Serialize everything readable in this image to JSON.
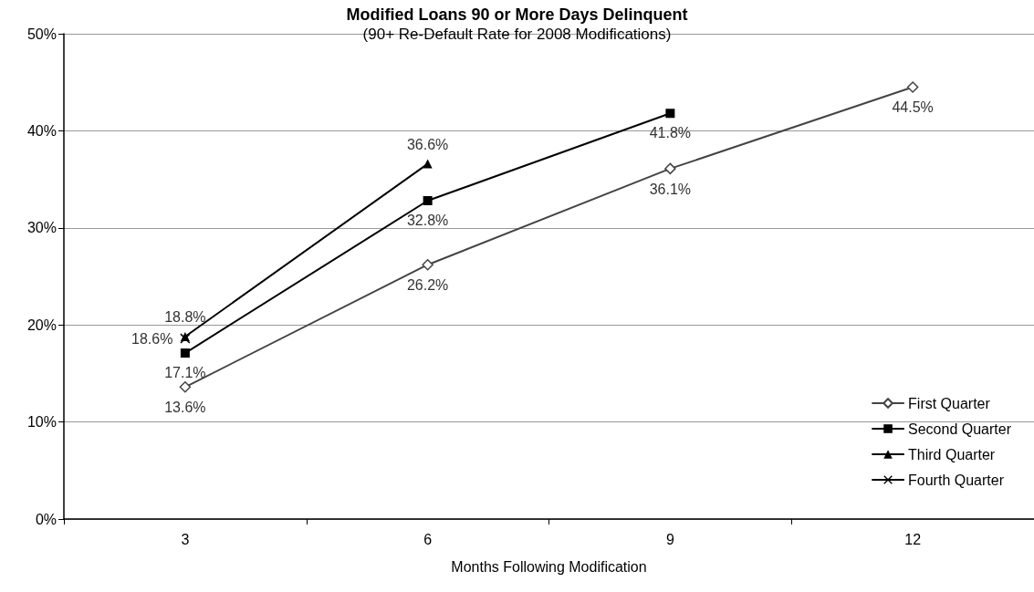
{
  "chart_data": {
    "type": "line",
    "title": "Modified Loans 90 or More Days Delinquent",
    "subtitle": "(90+ Re-Default Rate for 2008 Modifications)",
    "xlabel": "Months Following Modification",
    "categories": [
      "3",
      "6",
      "9",
      "12"
    ],
    "series": [
      {
        "name": "First Quarter",
        "color": "#444444",
        "marker": "diamond",
        "values": [
          13.6,
          26.2,
          36.1,
          44.5
        ],
        "value_labels": [
          "13.6%",
          "26.2%",
          "36.1%",
          "44.5%"
        ]
      },
      {
        "name": "Second Quarter",
        "color": "#000000",
        "marker": "square",
        "values": [
          17.1,
          32.8,
          41.8,
          null
        ],
        "value_labels": [
          "17.1%",
          "32.8%",
          "41.8%",
          null
        ]
      },
      {
        "name": "Third Quarter",
        "color": "#000000",
        "marker": "triangle",
        "values": [
          18.8,
          36.6,
          null,
          null
        ],
        "value_labels": [
          "18.8%",
          "36.6%",
          null,
          null
        ]
      },
      {
        "name": "Fourth Quarter",
        "color": "#000000",
        "marker": "cross",
        "values": [
          18.6,
          null,
          null,
          null
        ],
        "value_labels": [
          "18.6%",
          null,
          null,
          null
        ]
      }
    ],
    "ylim": [
      0,
      50
    ],
    "yticks": [
      {
        "value": 0,
        "label": "0%"
      },
      {
        "value": 10,
        "label": "10%"
      },
      {
        "value": 20,
        "label": "20%"
      },
      {
        "value": 30,
        "label": "30%"
      },
      {
        "value": 40,
        "label": "40%"
      },
      {
        "value": 50,
        "label": "50%"
      }
    ],
    "grid": "y",
    "legend": "bottom right"
  }
}
